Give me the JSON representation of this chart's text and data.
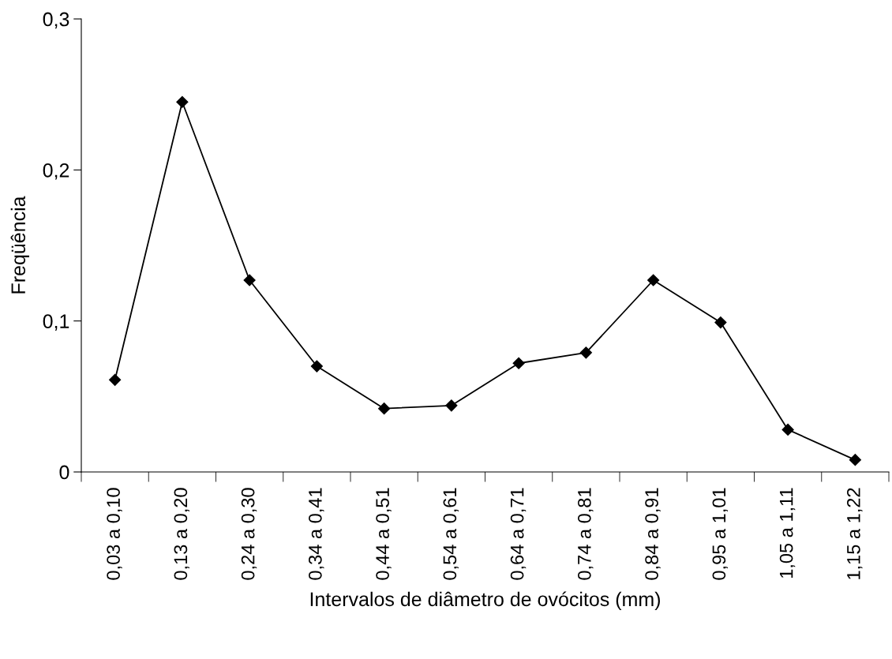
{
  "chart_data": {
    "type": "line",
    "xlabel": "Intervalos de diâmetro de ovócitos (mm)",
    "ylabel": "Freqüência",
    "categories": [
      "0,03 a 0,10",
      "0,13 a 0,20",
      "0,24 a 0,30",
      "0,34 a 0,41",
      "0,44 a 0,51",
      "0,54 a 0,61",
      "0,64 a 0,71",
      "0,74 a 0,81",
      "0,84 a 0,91",
      "0,95 a 1,01",
      "1,05 a 1,11",
      "1,15 a 1,22"
    ],
    "series": [
      {
        "color": "#000000",
        "values": [
          0.061,
          0.245,
          0.127,
          0.07,
          0.042,
          0.044,
          0.072,
          0.079,
          0.127,
          0.099,
          0.028,
          0.008
        ]
      }
    ],
    "ylim": [
      0,
      0.3
    ],
    "yticks": [
      {
        "value": 0,
        "label": "0"
      },
      {
        "value": 0.1,
        "label": "0,1"
      },
      {
        "value": 0.2,
        "label": "0,2"
      },
      {
        "value": 0.3,
        "label": "0,3"
      }
    ],
    "marker": "diamond",
    "line_style": "solid",
    "grid": false,
    "legend": false
  }
}
